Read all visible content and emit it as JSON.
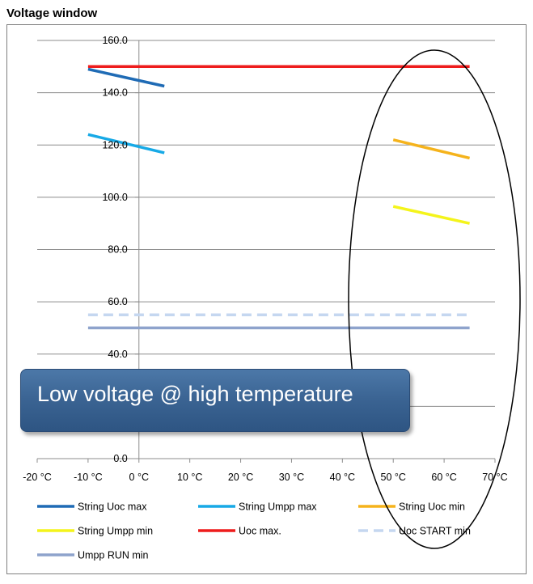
{
  "title": "Voltage window",
  "callout": "Low voltage @ high temperature",
  "chart_data": {
    "type": "line",
    "title": "Voltage window",
    "xlim": [
      -20,
      70
    ],
    "ylim": [
      0,
      160
    ],
    "x_ticks": [
      "-20 °C",
      "-10 °C",
      "0 °C",
      "10 °C",
      "20 °C",
      "30 °C",
      "40 °C",
      "50 °C",
      "60 °C",
      "70 °C"
    ],
    "y_ticks": [
      "0.0",
      "20.0",
      "40.0",
      "60.0",
      "80.0",
      "100.0",
      "120.0",
      "140.0",
      "160.0"
    ],
    "grid": "horizontal",
    "legend_placement": "bottom",
    "series": [
      {
        "name": "String Uoc max",
        "color": "#1f6bb5",
        "dash": false,
        "points": [
          [
            -10,
            149
          ],
          [
            5,
            142.5
          ]
        ]
      },
      {
        "name": "String Umpp max",
        "color": "#17a9e6",
        "dash": false,
        "points": [
          [
            -10,
            124
          ],
          [
            5,
            117
          ]
        ]
      },
      {
        "name": "String Uoc min",
        "color": "#f5b31c",
        "dash": false,
        "points": [
          [
            50,
            122
          ],
          [
            65,
            115
          ]
        ]
      },
      {
        "name": "String Umpp min",
        "color": "#f4f41b",
        "dash": false,
        "points": [
          [
            50,
            96.5
          ],
          [
            65,
            90
          ]
        ]
      },
      {
        "name": "Uoc max.",
        "color": "#ee1c1c",
        "dash": false,
        "points": [
          [
            -10,
            150
          ],
          [
            65,
            150
          ]
        ]
      },
      {
        "name": "Uoc START min",
        "color": "#c5d7f0",
        "dash": true,
        "points": [
          [
            -10,
            55
          ],
          [
            65,
            55
          ]
        ]
      },
      {
        "name": "Umpp RUN min",
        "color": "#8ea3cc",
        "dash": false,
        "points": [
          [
            -10,
            50
          ],
          [
            65,
            50
          ]
        ]
      }
    ]
  }
}
